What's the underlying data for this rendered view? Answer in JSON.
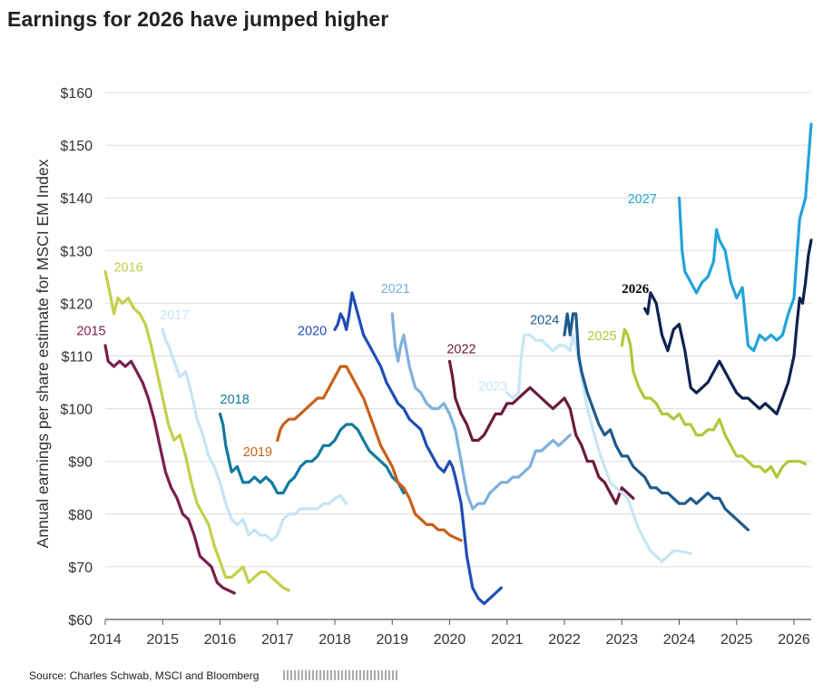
{
  "title": "Earnings for 2026 have jumped higher",
  "source": "Source: Charles Schwab, MSCI and Bloomberg",
  "chart_data": {
    "type": "line",
    "title": "Earnings for 2026 have jumped higher",
    "xlabel": "",
    "ylabel": "Annual earnings per share estimate for MSCI EM Index",
    "xlim": [
      2014,
      2026.3
    ],
    "ylim": [
      60,
      160
    ],
    "x_ticks": [
      "2014",
      "2015",
      "2016",
      "2017",
      "2018",
      "2019",
      "2020",
      "2021",
      "2022",
      "2023",
      "2024",
      "2025",
      "2026"
    ],
    "y_ticks": [
      "$60",
      "$70",
      "$80",
      "$90",
      "$100",
      "$110",
      "$120",
      "$130",
      "$140",
      "$150",
      "$160"
    ],
    "grid": "horizontal",
    "legend": "labels placed next to each line",
    "series": [
      {
        "name": "2015",
        "color": "#7a1f4e",
        "label_pos": [
          2013.5,
          114
        ],
        "x": [
          2014.0,
          2014.05,
          2014.15,
          2014.25,
          2014.35,
          2014.45,
          2014.55,
          2014.65,
          2014.75,
          2014.85,
          2014.95,
          2015.05,
          2015.15,
          2015.25,
          2015.35,
          2015.45,
          2015.55,
          2015.65,
          2015.75,
          2015.85,
          2015.95,
          2016.05,
          2016.15,
          2016.25
        ],
        "y": [
          112,
          109,
          108,
          109,
          108,
          109,
          107,
          105,
          102,
          98,
          93,
          88,
          85,
          83,
          80,
          79,
          76,
          72,
          71,
          70,
          67,
          66,
          65.5,
          65
        ]
      },
      {
        "name": "2016",
        "color": "#c2d04a",
        "label_pos": [
          2014.15,
          126
        ],
        "x": [
          2014.0,
          2014.08,
          2014.15,
          2014.22,
          2014.3,
          2014.4,
          2014.5,
          2014.6,
          2014.7,
          2014.8,
          2014.9,
          2015.0,
          2015.1,
          2015.2,
          2015.3,
          2015.4,
          2015.5,
          2015.6,
          2015.7,
          2015.8,
          2015.9,
          2016.0,
          2016.1,
          2016.2,
          2016.3,
          2016.4,
          2016.5,
          2016.6,
          2016.7,
          2016.8,
          2016.9,
          2017.0,
          2017.1,
          2017.2
        ],
        "y": [
          126,
          122,
          118,
          121,
          120,
          121,
          119,
          118,
          116,
          112,
          107,
          102,
          97,
          94,
          95,
          91,
          86,
          82,
          80,
          78,
          74,
          71,
          68,
          68,
          69,
          70,
          67,
          68,
          69,
          69,
          68,
          67,
          66,
          65.5
        ]
      },
      {
        "name": "2017",
        "color": "#c5e4f5",
        "label_pos": [
          2014.95,
          117
        ],
        "x": [
          2015.0,
          2015.05,
          2015.1,
          2015.2,
          2015.3,
          2015.4,
          2015.5,
          2015.6,
          2015.7,
          2015.8,
          2015.9,
          2016.0,
          2016.1,
          2016.2,
          2016.3,
          2016.4,
          2016.5,
          2016.6,
          2016.7,
          2016.8,
          2016.9,
          2017.0,
          2017.1,
          2017.2,
          2017.3,
          2017.4,
          2017.5,
          2017.6,
          2017.7,
          2017.8,
          2017.9,
          2018.0,
          2018.1,
          2018.2
        ],
        "y": [
          115,
          113,
          112,
          109,
          106,
          107,
          103,
          98,
          95,
          91,
          89,
          86,
          82,
          79,
          78,
          79,
          76,
          77,
          76,
          76,
          75,
          76,
          79,
          80,
          80,
          81,
          81,
          81,
          81,
          82,
          82,
          83,
          83.5,
          82
        ]
      },
      {
        "name": "2018",
        "color": "#127a9e",
        "label_pos": [
          2016.0,
          101
        ],
        "x": [
          2016.0,
          2016.05,
          2016.1,
          2016.2,
          2016.3,
          2016.4,
          2016.5,
          2016.6,
          2016.7,
          2016.8,
          2016.9,
          2017.0,
          2017.1,
          2017.2,
          2017.3,
          2017.4,
          2017.5,
          2017.6,
          2017.7,
          2017.8,
          2017.9,
          2018.0,
          2018.1,
          2018.2,
          2018.3,
          2018.4,
          2018.5,
          2018.6,
          2018.7,
          2018.8,
          2018.9,
          2019.0,
          2019.1,
          2019.2
        ],
        "y": [
          99,
          97,
          93,
          88,
          89,
          86,
          86,
          87,
          86,
          87,
          86,
          84,
          84,
          86,
          87,
          89,
          90,
          90,
          91,
          93,
          93,
          94,
          96,
          97,
          97,
          96,
          94,
          92,
          91,
          90,
          89,
          87,
          86,
          84
        ]
      },
      {
        "name": "2019",
        "color": "#c8601a",
        "label_pos": [
          2016.4,
          91
        ],
        "x": [
          2017.0,
          2017.05,
          2017.1,
          2017.2,
          2017.3,
          2017.4,
          2017.5,
          2017.6,
          2017.7,
          2017.8,
          2017.9,
          2018.0,
          2018.1,
          2018.2,
          2018.3,
          2018.4,
          2018.5,
          2018.6,
          2018.7,
          2018.8,
          2018.9,
          2019.0,
          2019.1,
          2019.2,
          2019.3,
          2019.4,
          2019.5,
          2019.6,
          2019.7,
          2019.8,
          2019.9,
          2020.0,
          2020.1,
          2020.2
        ],
        "y": [
          94,
          96,
          97,
          98,
          98,
          99,
          100,
          101,
          102,
          102,
          104,
          106,
          108,
          108,
          106,
          104,
          102,
          99,
          96,
          93,
          91,
          89,
          86,
          85,
          83,
          80,
          79,
          78,
          78,
          77,
          77,
          76,
          75.5,
          75
        ]
      },
      {
        "name": "2020",
        "color": "#1f4db5",
        "label_pos": [
          2017.35,
          114
        ],
        "x": [
          2018.0,
          2018.05,
          2018.1,
          2018.15,
          2018.2,
          2018.25,
          2018.3,
          2018.4,
          2018.5,
          2018.6,
          2018.7,
          2018.8,
          2018.9,
          2019.0,
          2019.1,
          2019.2,
          2019.3,
          2019.4,
          2019.5,
          2019.6,
          2019.7,
          2019.8,
          2019.9,
          2020.0,
          2020.05,
          2020.1,
          2020.2,
          2020.3,
          2020.4,
          2020.5,
          2020.6,
          2020.7,
          2020.8,
          2020.9
        ],
        "y": [
          115,
          116,
          118,
          117,
          115,
          118,
          122,
          118,
          114,
          112,
          110,
          108,
          105,
          103,
          101,
          100,
          98,
          97,
          96,
          93,
          91,
          89,
          88,
          90,
          89,
          87,
          82,
          72,
          66,
          64,
          63,
          64,
          65,
          66
        ]
      },
      {
        "name": "2021",
        "color": "#7fb0dc",
        "label_pos": [
          2018.8,
          122
        ],
        "x": [
          2019.0,
          2019.05,
          2019.1,
          2019.15,
          2019.2,
          2019.3,
          2019.4,
          2019.5,
          2019.6,
          2019.7,
          2019.8,
          2019.9,
          2020.0,
          2020.1,
          2020.2,
          2020.3,
          2020.4,
          2020.5,
          2020.6,
          2020.7,
          2020.8,
          2020.9,
          2021.0,
          2021.1,
          2021.2,
          2021.3,
          2021.4,
          2021.5,
          2021.6,
          2021.7,
          2021.8,
          2021.9,
          2022.0,
          2022.1
        ],
        "y": [
          118,
          112,
          109,
          112,
          114,
          108,
          104,
          103,
          101,
          100,
          100,
          101,
          99,
          96,
          90,
          84,
          81,
          82,
          82,
          84,
          85,
          86,
          86,
          87,
          87,
          88,
          89,
          92,
          92,
          93,
          94,
          93,
          94,
          95
        ]
      },
      {
        "name": "2022",
        "color": "#6b1b3c",
        "label_pos": [
          2019.95,
          110.5
        ],
        "x": [
          2020.0,
          2020.05,
          2020.1,
          2020.2,
          2020.3,
          2020.4,
          2020.5,
          2020.6,
          2020.7,
          2020.8,
          2020.9,
          2021.0,
          2021.1,
          2021.2,
          2021.3,
          2021.4,
          2021.5,
          2021.6,
          2021.7,
          2021.8,
          2021.9,
          2022.0,
          2022.1,
          2022.2,
          2022.3,
          2022.4,
          2022.5,
          2022.6,
          2022.7,
          2022.8,
          2022.9,
          2023.0,
          2023.1,
          2023.2
        ],
        "y": [
          109,
          106,
          102,
          99,
          97,
          94,
          94,
          95,
          97,
          99,
          99,
          101,
          101,
          102,
          103,
          104,
          103,
          102,
          101,
          100,
          101,
          102,
          100,
          95,
          93,
          90,
          90,
          87,
          86,
          84,
          82,
          85,
          84,
          83
        ]
      },
      {
        "name": "2023",
        "color": "#c7e6f6",
        "label_pos": [
          2020.5,
          103.5
        ],
        "x": [
          2021.0,
          2021.1,
          2021.2,
          2021.25,
          2021.3,
          2021.4,
          2021.5,
          2021.6,
          2021.7,
          2021.8,
          2021.9,
          2022.0,
          2022.1,
          2022.15,
          2022.2,
          2022.3,
          2022.4,
          2022.5,
          2022.6,
          2022.7,
          2022.8,
          2022.9,
          2023.0,
          2023.1,
          2023.2,
          2023.3,
          2023.4,
          2023.5,
          2023.6,
          2023.7,
          2023.8,
          2023.9,
          2024.0,
          2024.2
        ],
        "y": [
          103,
          102,
          103,
          110,
          114,
          114,
          113,
          113,
          112,
          111,
          112,
          112,
          111,
          114,
          112,
          106,
          100,
          96,
          92,
          89,
          86,
          85,
          84,
          83,
          80,
          77,
          75,
          73,
          72,
          71,
          72,
          73,
          73,
          72.5
        ]
      },
      {
        "name": "2024",
        "color": "#1f5a8c",
        "label_pos": [
          2021.4,
          116
        ],
        "x": [
          2022.0,
          2022.05,
          2022.1,
          2022.15,
          2022.2,
          2022.25,
          2022.3,
          2022.4,
          2022.5,
          2022.6,
          2022.7,
          2022.8,
          2022.9,
          2023.0,
          2023.1,
          2023.2,
          2023.3,
          2023.4,
          2023.5,
          2023.6,
          2023.7,
          2023.8,
          2023.9,
          2024.0,
          2024.1,
          2024.2,
          2024.3,
          2024.4,
          2024.5,
          2024.6,
          2024.7,
          2024.8,
          2024.9,
          2025.0,
          2025.1,
          2025.2
        ],
        "y": [
          114,
          118,
          114,
          118,
          118,
          110,
          107,
          103,
          100,
          97,
          95,
          96,
          93,
          91,
          91,
          89,
          88,
          87,
          85,
          85,
          84,
          84,
          83,
          82,
          82,
          83,
          82,
          83,
          84,
          83,
          83,
          81,
          80,
          79,
          78,
          77
        ]
      },
      {
        "name": "2025",
        "color": "#b3c63a",
        "label_pos": [
          2022.4,
          113
        ],
        "x": [
          2023.0,
          2023.05,
          2023.1,
          2023.15,
          2023.2,
          2023.3,
          2023.4,
          2023.5,
          2023.6,
          2023.7,
          2023.8,
          2023.9,
          2024.0,
          2024.1,
          2024.2,
          2024.3,
          2024.4,
          2024.5,
          2024.6,
          2024.7,
          2024.8,
          2024.9,
          2025.0,
          2025.1,
          2025.2,
          2025.3,
          2025.4,
          2025.5,
          2025.6,
          2025.7,
          2025.8,
          2025.9,
          2026.0,
          2026.1,
          2026.2
        ],
        "y": [
          112,
          115,
          114,
          112,
          107,
          104,
          102,
          102,
          101,
          99,
          99,
          98,
          99,
          97,
          97,
          95,
          95,
          96,
          96,
          98,
          95,
          93,
          91,
          91,
          90,
          89,
          89,
          88,
          89,
          87,
          89,
          90,
          90,
          90,
          89.5
        ]
      },
      {
        "name": "2026",
        "color": "#0f2250",
        "label_pos": [
          2023.0,
          122
        ],
        "x": [
          2023.4,
          2023.45,
          2023.5,
          2023.55,
          2023.6,
          2023.7,
          2023.8,
          2023.9,
          2024.0,
          2024.1,
          2024.2,
          2024.3,
          2024.4,
          2024.5,
          2024.6,
          2024.7,
          2024.8,
          2024.9,
          2025.0,
          2025.1,
          2025.2,
          2025.3,
          2025.4,
          2025.5,
          2025.6,
          2025.7,
          2025.8,
          2025.9,
          2026.0,
          2026.05,
          2026.1,
          2026.15,
          2026.2,
          2026.25,
          2026.3
        ],
        "y": [
          119,
          118,
          122,
          121,
          120,
          114,
          111,
          115,
          116,
          111,
          104,
          103,
          104,
          105,
          107,
          109,
          107,
          105,
          103,
          102,
          102,
          101,
          100,
          101,
          100,
          99,
          102,
          105,
          110,
          116,
          121,
          120,
          124,
          129,
          132
        ]
      },
      {
        "name": "2027",
        "color": "#22a4d8",
        "label_pos": [
          2023.1,
          139
        ],
        "x": [
          2024.0,
          2024.05,
          2024.1,
          2024.2,
          2024.3,
          2024.4,
          2024.5,
          2024.6,
          2024.65,
          2024.7,
          2024.8,
          2024.9,
          2025.0,
          2025.1,
          2025.2,
          2025.3,
          2025.4,
          2025.5,
          2025.6,
          2025.7,
          2025.8,
          2025.9,
          2026.0,
          2026.05,
          2026.1,
          2026.15,
          2026.2,
          2026.25,
          2026.3
        ],
        "y": [
          140,
          130,
          126,
          124,
          122,
          124,
          125,
          128,
          134,
          132,
          130,
          124,
          121,
          123,
          112,
          111,
          114,
          113,
          114,
          113,
          114,
          118,
          121,
          129,
          136,
          138,
          140,
          147,
          154
        ]
      }
    ]
  }
}
